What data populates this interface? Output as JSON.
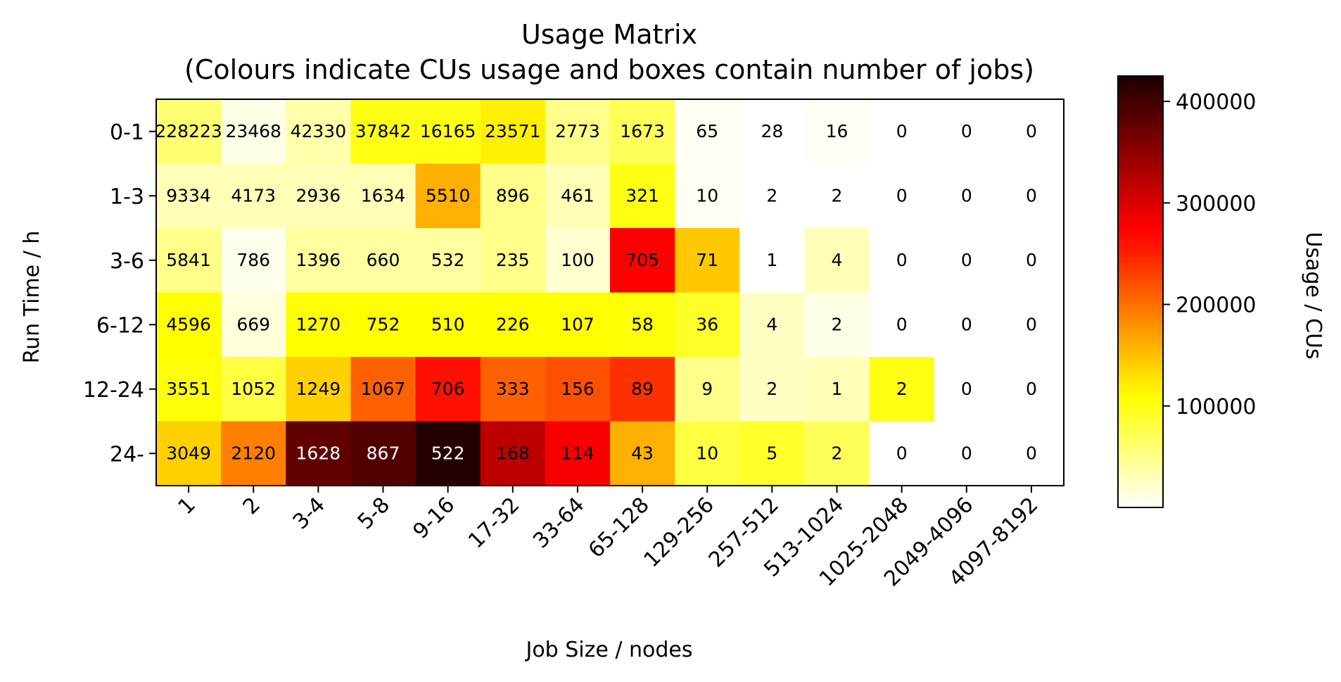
{
  "chart_data": {
    "type": "heatmap",
    "title": "Usage Matrix",
    "subtitle": "(Colours indicate CUs usage and boxes contain number of jobs)",
    "xlabel": "Job Size / nodes",
    "ylabel": "Run Time / h",
    "x_categories": [
      "1",
      "2",
      "3-4",
      "5-8",
      "9-16",
      "17-32",
      "33-64",
      "65-128",
      "129-256",
      "257-512",
      "513-1024",
      "1025-2048",
      "2049-4096",
      "4097-8192"
    ],
    "y_categories": [
      "0-1",
      "1-3",
      "3-6",
      "6-12",
      "12-24",
      "24-"
    ],
    "job_counts": [
      [
        228223,
        23468,
        42330,
        37842,
        16165,
        23571,
        2773,
        1673,
        65,
        28,
        16,
        0,
        0,
        0
      ],
      [
        9334,
        4173,
        2936,
        1634,
        5510,
        896,
        461,
        321,
        10,
        2,
        2,
        0,
        0,
        0
      ],
      [
        5841,
        786,
        1396,
        660,
        532,
        235,
        100,
        705,
        71,
        1,
        4,
        0,
        0,
        0
      ],
      [
        4596,
        669,
        1270,
        752,
        510,
        226,
        107,
        58,
        36,
        4,
        2,
        0,
        0,
        0
      ],
      [
        3551,
        1052,
        1249,
        1067,
        706,
        333,
        156,
        89,
        9,
        2,
        1,
        2,
        0,
        0
      ],
      [
        3049,
        2120,
        1628,
        867,
        522,
        168,
        114,
        43,
        10,
        5,
        2,
        0,
        0,
        0
      ]
    ],
    "usage_cus": [
      [
        60000,
        10000,
        35000,
        100000,
        100000,
        120000,
        50000,
        70000,
        5000,
        1000,
        3000,
        0,
        0,
        0
      ],
      [
        30000,
        30000,
        30000,
        30000,
        160000,
        50000,
        30000,
        100000,
        5000,
        1000,
        1000,
        0,
        0,
        0
      ],
      [
        50000,
        8000,
        40000,
        40000,
        40000,
        50000,
        20000,
        275000,
        145000,
        0,
        30000,
        0,
        0,
        0
      ],
      [
        110000,
        15000,
        110000,
        110000,
        110000,
        110000,
        110000,
        105000,
        90000,
        25000,
        10000,
        0,
        0,
        0
      ],
      [
        105000,
        80000,
        140000,
        210000,
        260000,
        210000,
        220000,
        240000,
        50000,
        25000,
        30000,
        100000,
        0,
        0
      ],
      [
        140000,
        190000,
        380000,
        390000,
        420000,
        320000,
        280000,
        160000,
        80000,
        90000,
        70000,
        0,
        0,
        0
      ]
    ],
    "colorbar": {
      "label": "Usage / CUs",
      "colormap": "hot_r",
      "range": [
        0,
        425000
      ],
      "ticks": [
        100000,
        200000,
        300000,
        400000
      ]
    }
  }
}
